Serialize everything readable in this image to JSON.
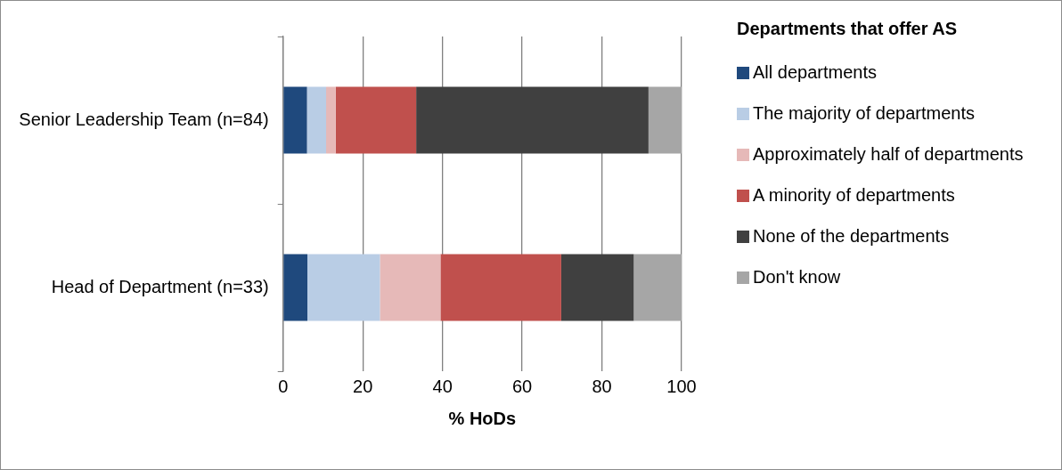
{
  "chart_data": {
    "type": "bar",
    "orientation": "horizontal",
    "stacked": true,
    "xlabel": "% HoDs",
    "legend_title": "Departments that offer AS",
    "categories": [
      "Senior Leadership Team (n=84)",
      "Head of Department (n=33)"
    ],
    "series": [
      {
        "name": "All departments",
        "color": "#1f497d",
        "values": [
          6.0,
          6.1
        ]
      },
      {
        "name": "The majority of departments",
        "color": "#b9cde5",
        "values": [
          4.8,
          18.2
        ]
      },
      {
        "name": "Approximately half of departments",
        "color": "#e6b9b8",
        "values": [
          2.4,
          15.2
        ]
      },
      {
        "name": "A minority of departments",
        "color": "#c0504d",
        "values": [
          20.2,
          30.3
        ]
      },
      {
        "name": "None of the departments",
        "color": "#404040",
        "values": [
          58.3,
          18.2
        ]
      },
      {
        "name": "Don't know",
        "color": "#a6a6a6",
        "values": [
          8.3,
          12.1
        ]
      }
    ],
    "xlim": [
      0,
      100
    ],
    "xticks": [
      0,
      20,
      40,
      60,
      80,
      100
    ],
    "grid": "x",
    "legend": "right"
  }
}
